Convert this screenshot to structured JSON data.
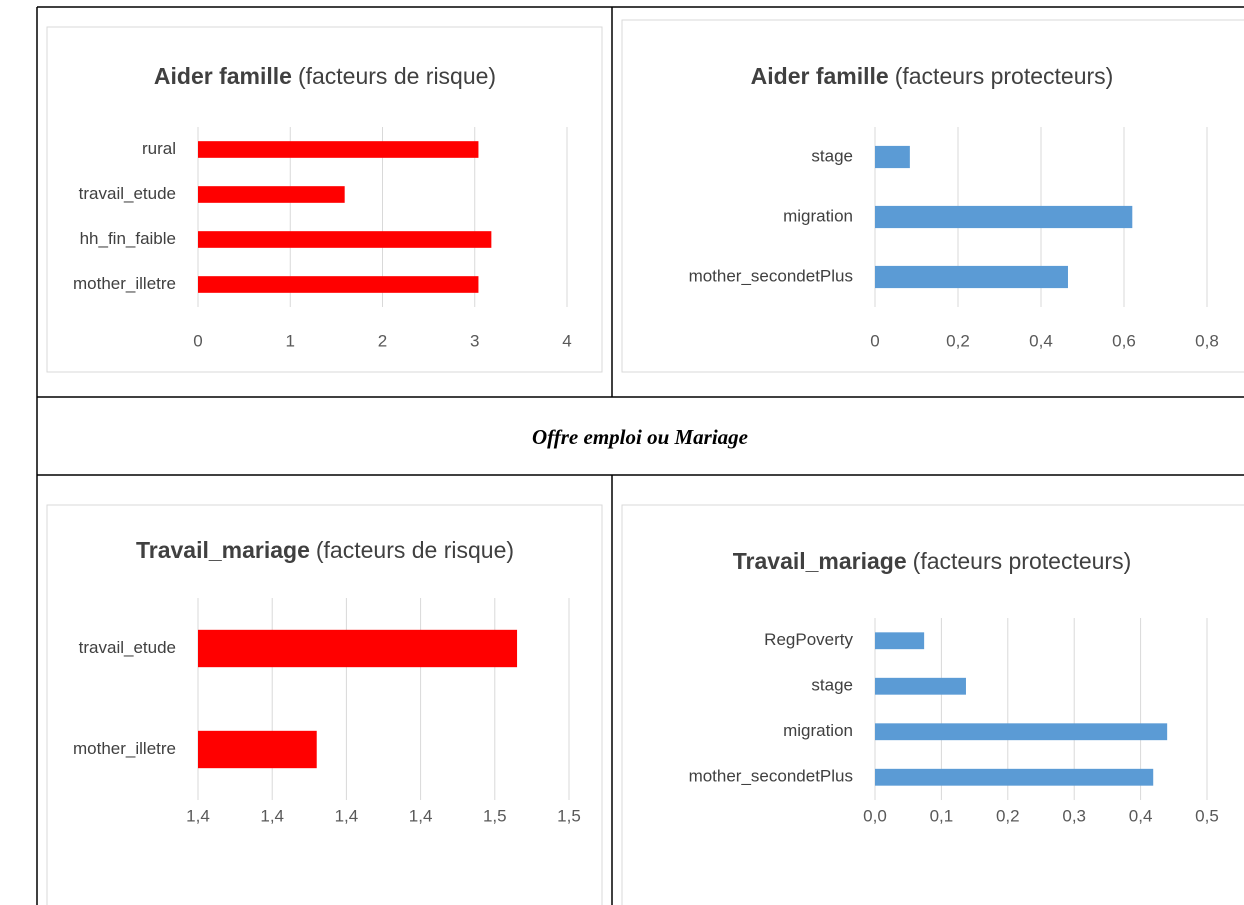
{
  "caption": "Offre emploi ou Mariage",
  "chart_data": [
    {
      "type": "barh",
      "title": "Aider famille",
      "subtitle": "(facteurs de risque)",
      "categories": [
        "rural",
        "travail_etude",
        "hh_fin_faible",
        "mother_illetre"
      ],
      "values": [
        3.04,
        1.59,
        3.18,
        3.04
      ],
      "color": "#ff0000",
      "xlim": [
        0,
        4
      ],
      "xticks": [
        0,
        1,
        2,
        3,
        4
      ],
      "grid": true
    },
    {
      "type": "barh",
      "title": "Aider famille",
      "subtitle": "(facteurs protecteurs)",
      "categories": [
        "stage",
        "migration",
        "mother_secondetPlus"
      ],
      "values": [
        0.084,
        0.62,
        0.465
      ],
      "color": "#5b9bd5",
      "xlim": [
        0,
        0.8
      ],
      "xticks": [
        0,
        {
          "value": 0.2,
          "label": "0,2"
        },
        {
          "value": 0.4,
          "label": "0,4"
        },
        {
          "value": 0.6,
          "label": "0,6"
        },
        {
          "value": 0.8,
          "label": "0,8"
        }
      ],
      "grid": true
    },
    {
      "type": "barh",
      "title": "Travail_mariage",
      "subtitle": "(facteurs de risque)",
      "categories": [
        "travail_etude",
        "mother_illetre"
      ],
      "values": [
        1.466,
        1.412
      ],
      "color": "#ff0000",
      "xlim": [
        1.38,
        1.48
      ],
      "xticks": [
        {
          "value": 1.38,
          "label": "1,4"
        },
        {
          "value": 1.4,
          "label": "1,4"
        },
        {
          "value": 1.42,
          "label": "1,4"
        },
        {
          "value": 1.44,
          "label": "1,4"
        },
        {
          "value": 1.46,
          "label": "1,5"
        },
        {
          "value": 1.48,
          "label": "1,5"
        }
      ],
      "grid": true
    },
    {
      "type": "barh",
      "title": "Travail_mariage",
      "subtitle": "(facteurs protecteurs)",
      "categories": [
        "RegPoverty",
        "stage",
        "migration",
        "mother_secondetPlus"
      ],
      "values": [
        0.074,
        0.137,
        0.44,
        0.419
      ],
      "color": "#5b9bd5",
      "xlim": [
        0,
        0.5
      ],
      "xticks": [
        {
          "value": 0,
          "label": "0,0"
        },
        {
          "value": 0.1,
          "label": "0,1"
        },
        {
          "value": 0.2,
          "label": "0,2"
        },
        {
          "value": 0.3,
          "label": "0,3"
        },
        {
          "value": 0.4,
          "label": "0,4"
        },
        {
          "value": 0.5,
          "label": "0,5"
        }
      ],
      "grid": true
    }
  ]
}
